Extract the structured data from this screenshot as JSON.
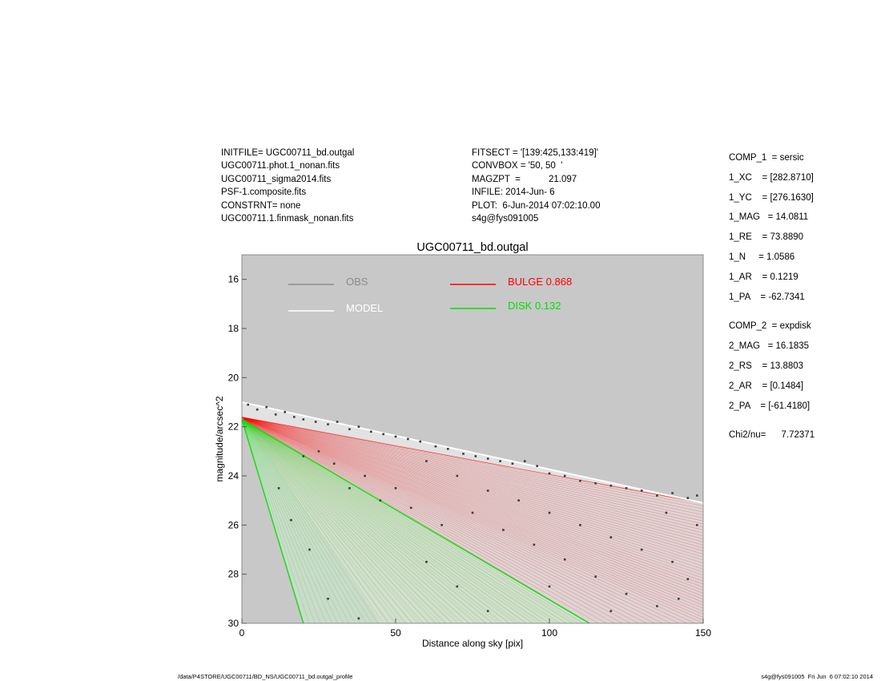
{
  "header_left": [
    "INITFILE= UGC00711_bd.outgal",
    "UGC00711.phot.1_nonan.fits",
    "UGC00711_sigma2014.fits",
    "PSF-1.composite.fits",
    "CONSTRNT= none",
    "UGC00711.1.finmask_nonan.fits"
  ],
  "header_mid": [
    "FITSECT = '[139:425,133:419]'",
    "CONVBOX = '50, 50  '",
    "MAGZPT  =           21.097",
    "INFILE: 2014-Jun- 6",
    "PLOT:  6-Jun-2014 07:02:10.00",
    "s4g@fys091005"
  ],
  "params": [
    "COMP_1  = sersic",
    "1_XC    = [282.8710]",
    "1_YC    = [276.1630]",
    "1_MAG   = 14.0811",
    "1_RE    = 73.8890",
    "1_N     = 1.0586",
    "1_AR    = 0.1219",
    "1_PA    = -62.7341",
    "",
    "COMP_2  = expdisk",
    "2_MAG   = 16.1835",
    "2_RS    = 13.8803",
    "2_AR    = [0.1484]",
    "2_PA    = [-61.4180]",
    "",
    "Chi2/nu=      7.72371"
  ],
  "footer_left": "/data/P4STORE/UGC00711/BD_NS/UGC00711_bd.outgal_profile",
  "footer_right": "s4g@fys091005  Fri Jun  6 07:02:10 2014",
  "chart_data": {
    "type": "scatter",
    "title": "UGC00711_bd.outgal",
    "xlabel": "Distance along sky [pix]",
    "ylabel": "magnitude/arcsec^2",
    "xlim": [
      0,
      150
    ],
    "ylim": [
      30,
      15
    ],
    "y_reversed": true,
    "xticks": [
      0,
      50,
      100,
      150
    ],
    "yticks": [
      16,
      18,
      20,
      22,
      24,
      26,
      28,
      30
    ],
    "background": "#c8c8c8",
    "legend": [
      {
        "label": "OBS",
        "color": "#8c8c8c"
      },
      {
        "label": "MODEL",
        "color": "#ffffff"
      },
      {
        "label": "BULGE  0.868",
        "color": "#ff0000"
      },
      {
        "label": "DISK  0.132",
        "color": "#00e000"
      }
    ],
    "series": {
      "model": {
        "color": "#ffffff",
        "upper_edge": [
          [
            0,
            21.0
          ],
          [
            150,
            25.1
          ]
        ]
      },
      "bulge": {
        "color": "#ff0000",
        "upper_edge": [
          [
            0,
            21.6
          ],
          [
            150,
            25.1
          ]
        ],
        "lower_edge": [
          [
            0,
            21.6
          ],
          [
            45,
            30
          ]
        ]
      },
      "disk": {
        "color": "#00e000",
        "upper_edge": [
          [
            0,
            21.7
          ],
          [
            113,
            30
          ]
        ],
        "lower_edge": [
          [
            0,
            21.7
          ],
          [
            20,
            30
          ]
        ]
      },
      "obs": {
        "color": "#3c3c3c",
        "points": [
          [
            2,
            21.1
          ],
          [
            5,
            21.3
          ],
          [
            8,
            21.2
          ],
          [
            11,
            21.5
          ],
          [
            14,
            21.4
          ],
          [
            17,
            21.6
          ],
          [
            20,
            21.7
          ],
          [
            24,
            21.8
          ],
          [
            28,
            21.9
          ],
          [
            31,
            21.8
          ],
          [
            35,
            22.1
          ],
          [
            38,
            22.0
          ],
          [
            42,
            22.2
          ],
          [
            46,
            22.3
          ],
          [
            50,
            22.4
          ],
          [
            54,
            22.5
          ],
          [
            58,
            22.6
          ],
          [
            63,
            22.8
          ],
          [
            67,
            22.9
          ],
          [
            72,
            23.1
          ],
          [
            76,
            23.2
          ],
          [
            80,
            23.3
          ],
          [
            84,
            23.4
          ],
          [
            88,
            23.5
          ],
          [
            92,
            23.4
          ],
          [
            96,
            23.6
          ],
          [
            100,
            23.9
          ],
          [
            105,
            24.0
          ],
          [
            110,
            24.2
          ],
          [
            115,
            24.3
          ],
          [
            120,
            24.4
          ],
          [
            125,
            24.5
          ],
          [
            130,
            24.6
          ],
          [
            135,
            24.8
          ],
          [
            140,
            24.7
          ],
          [
            145,
            24.9
          ],
          [
            148,
            24.8
          ],
          [
            60,
            23.4
          ],
          [
            70,
            24.0
          ],
          [
            80,
            24.6
          ],
          [
            90,
            25.0
          ],
          [
            100,
            25.5
          ],
          [
            110,
            26.0
          ],
          [
            120,
            26.5
          ],
          [
            130,
            27.0
          ],
          [
            140,
            27.5
          ],
          [
            145,
            28.2
          ],
          [
            75,
            25.5
          ],
          [
            85,
            26.2
          ],
          [
            95,
            26.8
          ],
          [
            105,
            27.4
          ],
          [
            115,
            28.1
          ],
          [
            125,
            28.8
          ],
          [
            135,
            29.3
          ],
          [
            50,
            24.5
          ],
          [
            55,
            25.3
          ],
          [
            65,
            26.0
          ],
          [
            40,
            24.0
          ],
          [
            45,
            25.0
          ],
          [
            30,
            23.5
          ],
          [
            35,
            24.5
          ],
          [
            25,
            23.0
          ],
          [
            20,
            23.2
          ],
          [
            12,
            24.5
          ],
          [
            16,
            25.8
          ],
          [
            22,
            27.0
          ],
          [
            28,
            29.0
          ],
          [
            38,
            29.8
          ],
          [
            60,
            27.5
          ],
          [
            70,
            28.5
          ],
          [
            80,
            29.5
          ],
          [
            100,
            28.5
          ],
          [
            120,
            29.5
          ],
          [
            142,
            29.0
          ],
          [
            148,
            26.0
          ],
          [
            138,
            25.5
          ]
        ]
      }
    }
  }
}
